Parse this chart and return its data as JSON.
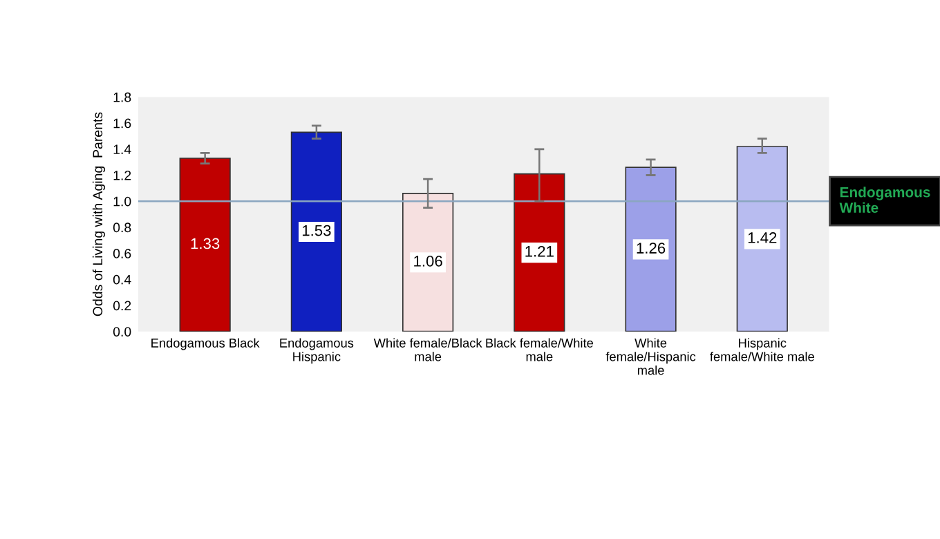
{
  "chart_data": {
    "type": "bar",
    "ylabel": "Odds of Living with Aging  Parents",
    "categories": [
      "Endogamous Black",
      "Endogamous\nHispanic",
      "White female/Black\nmale",
      "Black female/White\nmale",
      "White\nfemale/Hispanic\nmale",
      "Hispanic\nfemale/White male"
    ],
    "values": [
      1.33,
      1.53,
      1.06,
      1.21,
      1.26,
      1.42
    ],
    "errors": [
      0.04,
      0.05,
      [
        0.95,
        1.17
      ],
      [
        1.0,
        1.4
      ],
      [
        1.2,
        1.32
      ],
      [
        1.37,
        1.48
      ]
    ],
    "colors": [
      "#c00000",
      "#1020c0",
      "#f6e0e0",
      "#c00000",
      "#9ca0e8",
      "#b8bcf0"
    ],
    "data_labels": true,
    "ylim": [
      0,
      1.8
    ],
    "yticks": [
      {
        "value": 0,
        "label": "0.0"
      },
      0.2,
      0.4,
      0.6,
      0.8,
      {
        "value": 1,
        "label": "1.0"
      },
      1.2,
      1.4,
      1.6,
      1.8
    ],
    "ref_lines": [
      {
        "axis": "y",
        "value": 1.0,
        "label": "Endogamous\nWhite",
        "color": "#8aa6c0"
      }
    ],
    "grid": false,
    "legend": false
  }
}
